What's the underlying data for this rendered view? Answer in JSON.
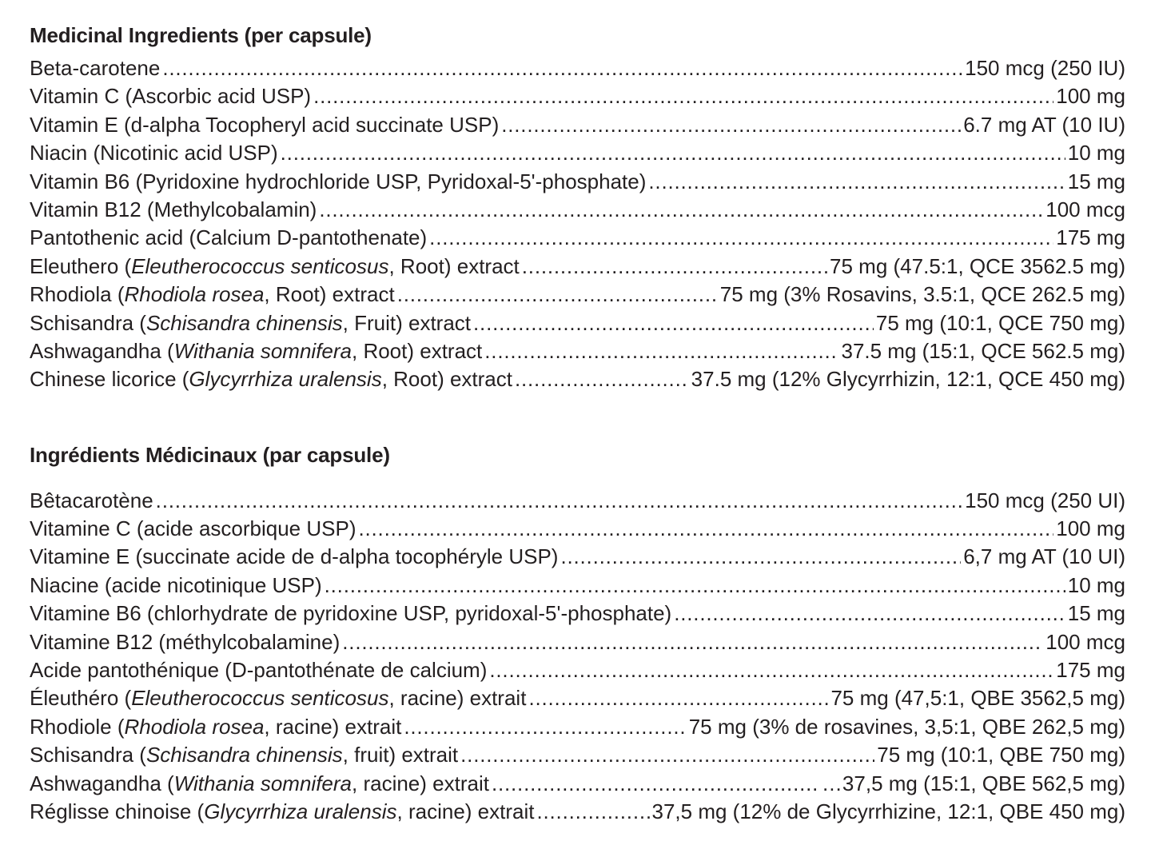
{
  "page": {
    "background_color": "#ffffff",
    "text_color": "#231f20"
  },
  "sections": [
    {
      "id": "english",
      "title": "Medicinal Ingredients (per capsule)",
      "rows": [
        {
          "pre": "Beta-carotene",
          "latin": "",
          "post": "",
          "value": "150 mcg (250 IU)"
        },
        {
          "pre": "Vitamin C (Ascorbic acid USP)",
          "latin": "",
          "post": "",
          "value": "100 mg"
        },
        {
          "pre": "Vitamin E (d-alpha Tocopheryl acid succinate USP)",
          "latin": "",
          "post": "",
          "value": "6.7 mg AT (10 IU)"
        },
        {
          "pre": "Niacin (Nicotinic acid USP)",
          "latin": "",
          "post": "",
          "value": "10 mg"
        },
        {
          "pre": "Vitamin B6 (Pyridoxine hydrochloride USP, Pyridoxal-5'-phosphate)",
          "latin": "",
          "post": "",
          "value": "15 mg"
        },
        {
          "pre": "Vitamin B12 (Methylcobalamin)",
          "latin": "",
          "post": "",
          "value": "100 mcg"
        },
        {
          "pre": "Pantothenic acid (Calcium D-pantothenate)",
          "latin": "",
          "post": "",
          "value": "175 mg"
        },
        {
          "pre": "Eleuthero (",
          "latin": "Eleutherococcus senticosus",
          "post": ", Root) extract",
          "value": "75 mg (47.5:1, QCE 3562.5 mg)"
        },
        {
          "pre": "Rhodiola (",
          "latin": "Rhodiola rosea",
          "post": ", Root) extract",
          "value": "75 mg (3% Rosavins, 3.5:1, QCE 262.5 mg)"
        },
        {
          "pre": "Schisandra (",
          "latin": "Schisandra chinensis",
          "post": ", Fruit) extract",
          "value": "75 mg (10:1, QCE 750 mg)"
        },
        {
          "pre": "Ashwagandha (",
          "latin": "Withania somnifera",
          "post": ", Root) extract",
          "value": "37.5 mg (15:1, QCE 562.5 mg)"
        },
        {
          "pre": "Chinese licorice (",
          "latin": "Glycyrrhiza uralensis",
          "post": ", Root) extract",
          "value": "37.5 mg (12% Glycyrrhizin, 12:1, QCE 450 mg)"
        }
      ]
    },
    {
      "id": "french",
      "title": "Ingrédients Médicinaux (par capsule)",
      "rows": [
        {
          "pre": "Bêtacarotène",
          "latin": "",
          "post": "",
          "value": "150 mcg (250 UI)"
        },
        {
          "pre": "Vitamine C (acide ascorbique USP)",
          "latin": "",
          "post": "",
          "value": "100 mg"
        },
        {
          "pre": "Vitamine E (succinate acide de d-alpha tocophéryle USP)",
          "latin": "",
          "post": "",
          "value": "6,7 mg AT (10 UI)"
        },
        {
          "pre": "Niacine (acide nicotinique USP)",
          "latin": "",
          "post": "",
          "value": "10 mg"
        },
        {
          "pre": "Vitamine B6 (chlorhydrate de pyridoxine USP, pyridoxal-5'-phosphate)",
          "latin": "",
          "post": "",
          "value": "15 mg"
        },
        {
          "pre": "Vitamine B12 (méthylcobalamine)",
          "latin": "",
          "post": "",
          "value": "100 mcg"
        },
        {
          "pre": "Acide pantothénique (D-pantothénate de calcium)",
          "latin": "",
          "post": "",
          "value": "175 mg"
        },
        {
          "pre": "Éleuthéro (",
          "latin": "Eleutherococcus senticosus",
          "post": ", racine) extrait",
          "value": "75 mg (47,5:1, QBE 3562,5 mg)"
        },
        {
          "pre": "Rhodiole (",
          "latin": "Rhodiola rosea",
          "post": ", racine) extrait",
          "value": "75 mg (3% de rosavines, 3,5:1, QBE 262,5 mg)"
        },
        {
          "pre": "Schisandra (",
          "latin": "Schisandra chinensis",
          "post": ", fruit) extrait",
          "value": "75 mg (10:1, QBE 750 mg)"
        },
        {
          "pre": "Ashwagandha (",
          "latin": "Withania somnifera",
          "post": ", racine) extrait",
          "value": "…37,5 mg (15:1, QBE 562,5 mg)"
        },
        {
          "pre": "Réglisse chinoise (",
          "latin": "Glycyrrhiza uralensis",
          "post": ", racine) extrait",
          "value": "37,5 mg (12% de Glycyrrhizine, 12:1, QBE 450 mg)"
        }
      ]
    }
  ]
}
